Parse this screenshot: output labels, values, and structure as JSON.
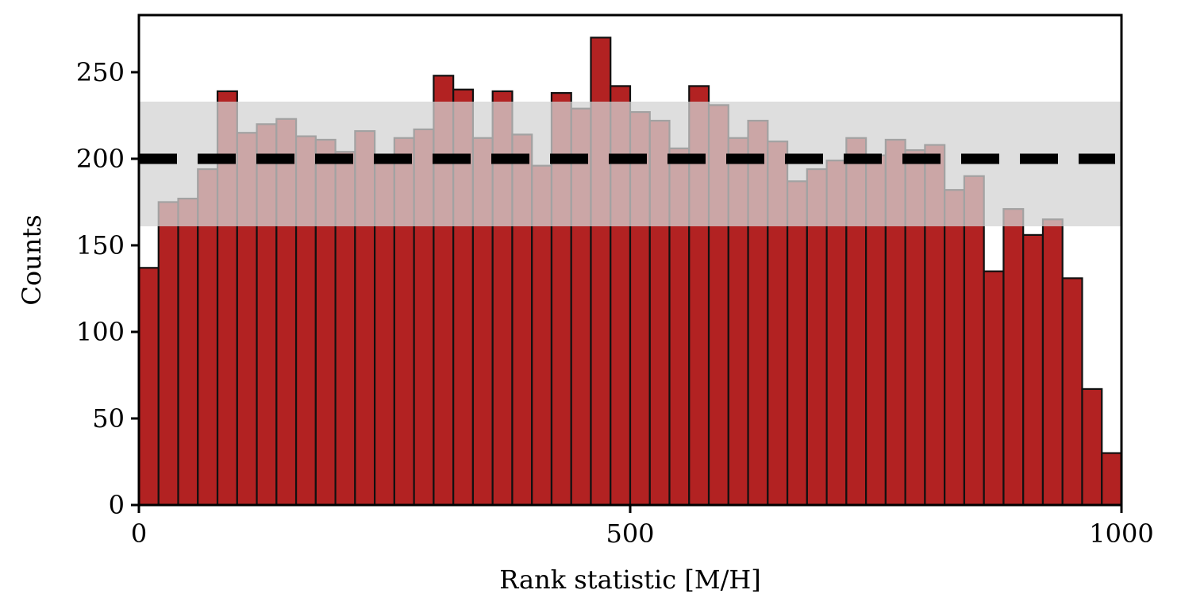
{
  "chart_data": {
    "type": "bar",
    "subtype": "histogram",
    "xlabel": "Rank statistic [M/H]",
    "ylabel": "Counts",
    "xlim": [
      0,
      1000
    ],
    "ylim": [
      0,
      283
    ],
    "x_ticks": [
      0,
      500,
      1000
    ],
    "y_ticks": [
      0,
      50,
      100,
      150,
      200,
      250
    ],
    "bin_width": 20,
    "bin_edges_start": 0,
    "values": [
      137,
      175,
      177,
      194,
      239,
      215,
      220,
      223,
      213,
      211,
      204,
      216,
      200,
      212,
      217,
      248,
      240,
      212,
      239,
      214,
      196,
      238,
      229,
      270,
      242,
      227,
      222,
      206,
      242,
      231,
      212,
      222,
      210,
      187,
      194,
      199,
      212,
      202,
      211,
      205,
      208,
      182,
      190,
      135,
      171,
      156,
      165,
      131,
      67,
      30
    ],
    "bar_color": "#b22222",
    "bar_edge_color": "#111111",
    "expected_line": {
      "value": 200,
      "style": "dashed",
      "color": "#000000"
    },
    "expected_band": {
      "low": 161,
      "high": 233,
      "color": "#d3d3d3"
    },
    "grid": false,
    "legend": "none"
  }
}
